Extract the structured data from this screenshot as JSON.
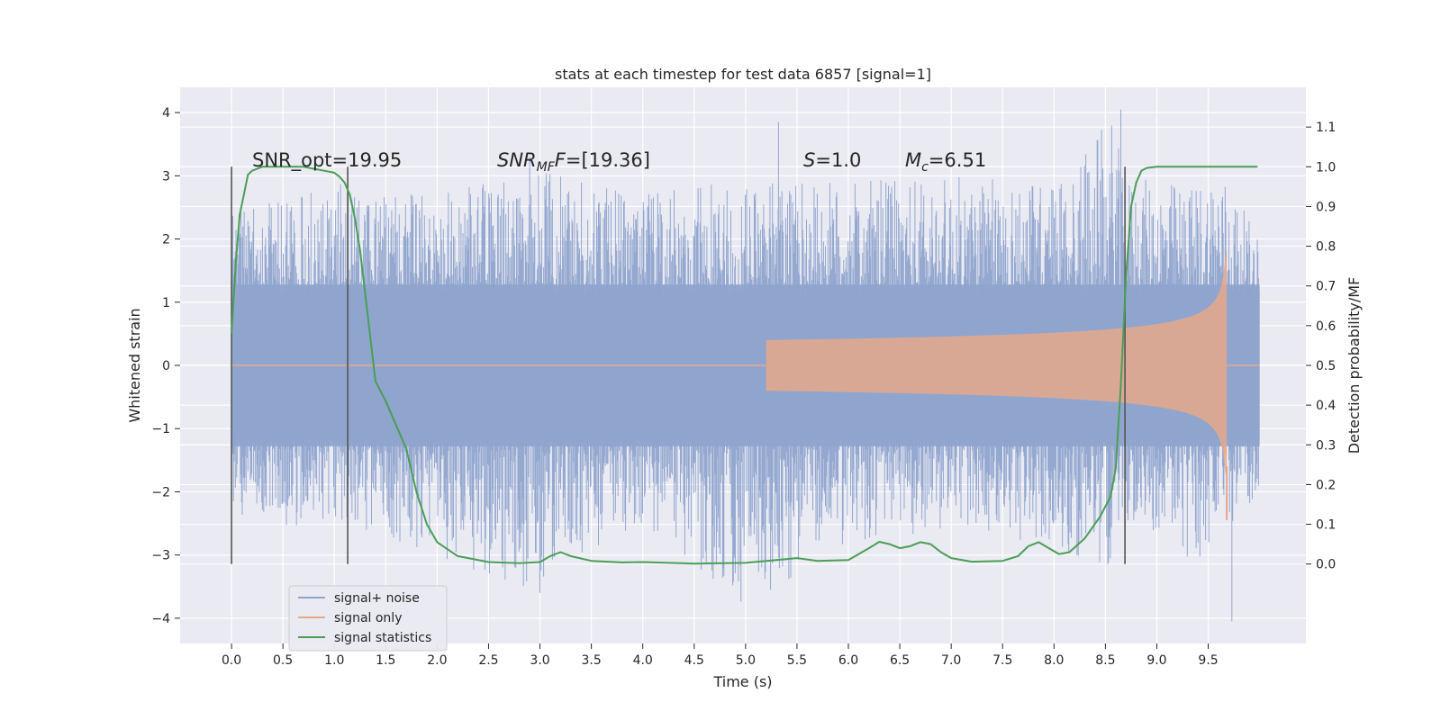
{
  "chart_data": {
    "type": "line",
    "title": "stats at each timestep for test data 6857 [signal=1]",
    "xlabel": "Time (s)",
    "ylabel": "Whitened strain",
    "y2label": "Detection probability/MF",
    "xlim": [
      -0.5,
      10.45
    ],
    "ylim": [
      -4.4,
      4.4
    ],
    "y2lim": [
      -0.2,
      1.2
    ],
    "xticks": [
      "0.0",
      "0.5",
      "1.0",
      "1.5",
      "2.0",
      "2.5",
      "3.0",
      "3.5",
      "4.0",
      "4.5",
      "5.0",
      "5.5",
      "6.0",
      "6.5",
      "7.0",
      "7.5",
      "8.0",
      "8.5",
      "9.0",
      "9.5"
    ],
    "yticks": [
      "4",
      "3",
      "2",
      "1",
      "0",
      "−1",
      "−2",
      "−3",
      "−4"
    ],
    "y2ticks": [
      "1.1",
      "1.0",
      "0.9",
      "0.8",
      "0.7",
      "0.6",
      "0.5",
      "0.4",
      "0.3",
      "0.2",
      "0.1",
      "0.0"
    ],
    "grid": true,
    "legend_position": "lower-left",
    "annotations": {
      "snr_opt": "SNR_opt=19.95",
      "snr_mf_main": "SNR",
      "snr_mf_sub": "MF",
      "snr_mf_value": "=[19.36]",
      "s_main": "S",
      "s_value": "=1.0",
      "mc_main": "M",
      "mc_sub": "c",
      "mc_value": "=6.51"
    },
    "window_markers": [
      0.0,
      1.13,
      8.69
    ],
    "series": [
      {
        "name": "signal+ noise",
        "color": "#8fa4cd",
        "envelope": {
          "x": [
            0.0,
            1.0,
            2.0,
            3.0,
            4.0,
            5.0,
            6.0,
            7.0,
            8.0,
            8.6,
            8.65,
            9.2,
            9.3,
            9.6,
            10.0
          ],
          "max": [
            2.4,
            2.9,
            2.7,
            3.1,
            2.8,
            2.9,
            2.9,
            3.0,
            2.9,
            4.0,
            3.0,
            2.9,
            2.8,
            3.2,
            2.0
          ],
          "min": [
            -2.5,
            -2.6,
            -3.1,
            -3.6,
            -2.5,
            -3.8,
            -2.8,
            -2.6,
            -2.9,
            -3.2,
            -2.5,
            -2.7,
            -3.3,
            -2.8,
            -2.0
          ]
        },
        "peaks": [
          {
            "x": 5.32,
            "y": 3.85
          },
          {
            "x": 8.65,
            "y": 4.05
          },
          {
            "x": 9.73,
            "y": -4.05
          },
          {
            "x": 2.9,
            "y": 3.3
          },
          {
            "x": 3.0,
            "y": -3.6
          }
        ]
      },
      {
        "name": "signal only",
        "color": "#e6a88a",
        "chirp": {
          "start": 5.2,
          "end": 9.68,
          "final_amplitude": 1.85,
          "ringdown_min": -2.45
        }
      },
      {
        "name": "signal statistics",
        "color": "#4a9e56",
        "axis": "right",
        "x": [
          0.0,
          0.04,
          0.08,
          0.12,
          0.16,
          0.2,
          0.3,
          0.4,
          0.5,
          0.6,
          0.7,
          0.8,
          0.9,
          1.0,
          1.05,
          1.1,
          1.15,
          1.2,
          1.25,
          1.3,
          1.35,
          1.4,
          1.5,
          1.6,
          1.7,
          1.8,
          1.9,
          2.0,
          2.2,
          2.5,
          2.8,
          3.0,
          3.1,
          3.2,
          3.3,
          3.5,
          3.8,
          4.0,
          4.5,
          5.0,
          5.3,
          5.5,
          5.7,
          6.0,
          6.2,
          6.3,
          6.4,
          6.5,
          6.6,
          6.7,
          6.8,
          6.9,
          7.0,
          7.2,
          7.5,
          7.65,
          7.75,
          7.85,
          7.95,
          8.05,
          8.15,
          8.3,
          8.45,
          8.55,
          8.6,
          8.65,
          8.7,
          8.75,
          8.8,
          8.85,
          8.9,
          9.0,
          9.5,
          9.98
        ],
        "y": [
          0.58,
          0.75,
          0.88,
          0.93,
          0.98,
          0.99,
          1.0,
          1.0,
          1.0,
          1.0,
          1.0,
          0.995,
          0.99,
          0.985,
          0.975,
          0.96,
          0.93,
          0.87,
          0.79,
          0.68,
          0.57,
          0.46,
          0.41,
          0.35,
          0.29,
          0.18,
          0.1,
          0.055,
          0.02,
          0.005,
          0.002,
          0.005,
          0.02,
          0.03,
          0.02,
          0.008,
          0.004,
          0.005,
          0.001,
          0.003,
          0.01,
          0.015,
          0.008,
          0.01,
          0.04,
          0.056,
          0.05,
          0.04,
          0.045,
          0.055,
          0.05,
          0.03,
          0.015,
          0.006,
          0.008,
          0.02,
          0.045,
          0.055,
          0.04,
          0.025,
          0.03,
          0.065,
          0.12,
          0.17,
          0.24,
          0.45,
          0.72,
          0.9,
          0.96,
          0.99,
          0.997,
          1.0,
          1.0,
          1.0
        ]
      }
    ]
  }
}
